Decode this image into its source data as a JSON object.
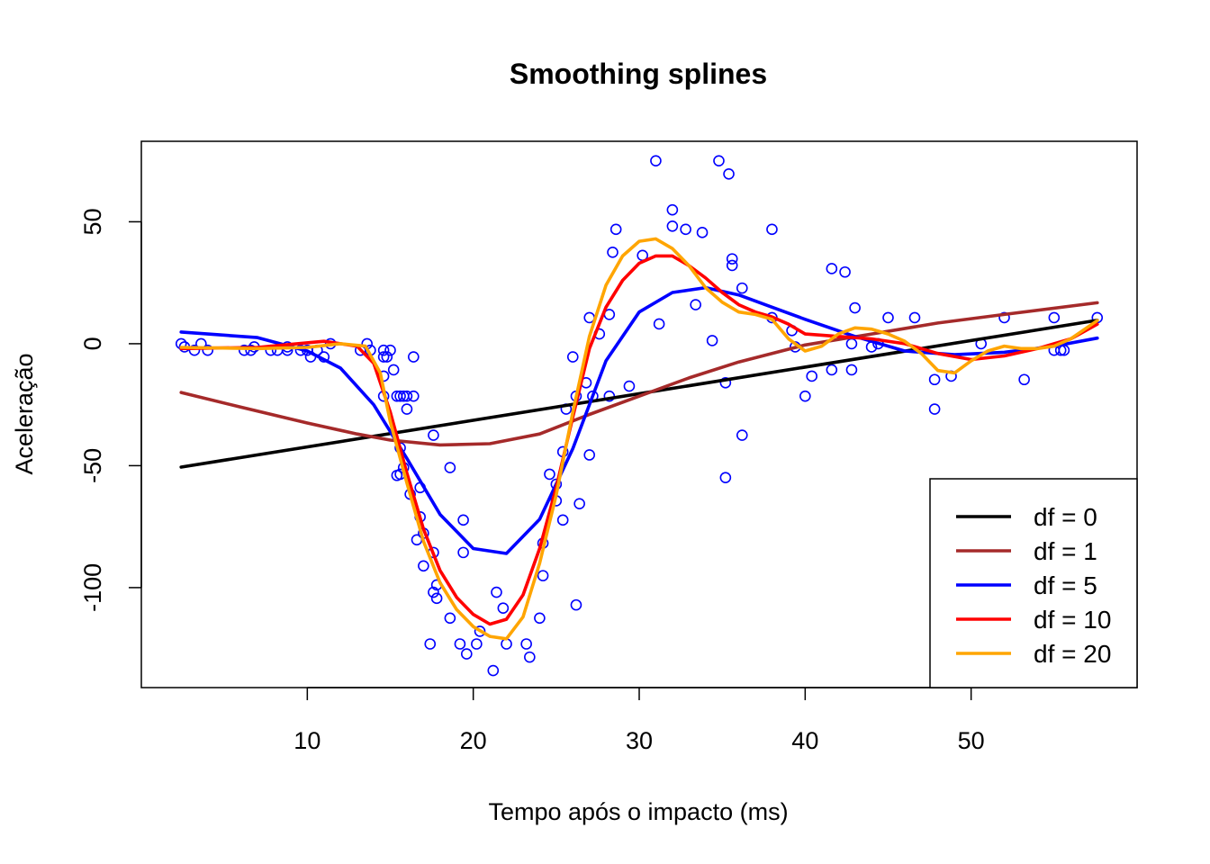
{
  "chart_data": {
    "type": "scatter",
    "title": "Smoothing splines",
    "xlabel": "Tempo após o impacto (ms)",
    "ylabel": "Aceleração",
    "xlim": [
      0.0,
      60.0
    ],
    "ylim": [
      -141.0,
      83.0
    ],
    "x_ticks": [
      10,
      20,
      30,
      40,
      50
    ],
    "y_ticks": [
      -100,
      -50,
      0,
      50
    ],
    "y_tick_labels": [
      "-100",
      "-50",
      "0",
      "50"
    ],
    "legend_position": "bottom-right",
    "points_color": "#0000ff",
    "points": [
      [
        2.4,
        0.0
      ],
      [
        2.6,
        -1.3
      ],
      [
        3.2,
        -2.7
      ],
      [
        3.6,
        0.0
      ],
      [
        4.0,
        -2.7
      ],
      [
        6.2,
        -2.7
      ],
      [
        6.6,
        -2.7
      ],
      [
        6.8,
        -1.3
      ],
      [
        7.8,
        -2.7
      ],
      [
        8.2,
        -2.7
      ],
      [
        8.8,
        -1.3
      ],
      [
        8.8,
        -2.7
      ],
      [
        9.6,
        -2.7
      ],
      [
        10.0,
        -2.7
      ],
      [
        10.2,
        -5.4
      ],
      [
        10.6,
        -2.7
      ],
      [
        11.0,
        -5.4
      ],
      [
        11.4,
        0.0
      ],
      [
        13.2,
        -2.7
      ],
      [
        13.6,
        0.0
      ],
      [
        13.8,
        -2.7
      ],
      [
        14.6,
        -2.7
      ],
      [
        14.6,
        -5.4
      ],
      [
        14.6,
        -13.3
      ],
      [
        14.6,
        -21.5
      ],
      [
        14.8,
        -5.4
      ],
      [
        15.0,
        -2.7
      ],
      [
        15.2,
        -10.7
      ],
      [
        15.4,
        -21.5
      ],
      [
        15.4,
        -54.0
      ],
      [
        15.6,
        -53.5
      ],
      [
        15.6,
        -21.5
      ],
      [
        15.6,
        -42.7
      ],
      [
        15.8,
        -21.5
      ],
      [
        15.8,
        -50.8
      ],
      [
        16.0,
        -21.5
      ],
      [
        16.0,
        -26.8
      ],
      [
        16.2,
        -61.7
      ],
      [
        16.4,
        -21.5
      ],
      [
        16.4,
        -5.4
      ],
      [
        16.6,
        -80.4
      ],
      [
        16.8,
        -59.0
      ],
      [
        16.8,
        -71.0
      ],
      [
        17.0,
        -91.1
      ],
      [
        17.0,
        -77.7
      ],
      [
        17.4,
        -123.1
      ],
      [
        17.6,
        -37.5
      ],
      [
        17.6,
        -85.6
      ],
      [
        17.6,
        -101.9
      ],
      [
        17.8,
        -104.4
      ],
      [
        17.8,
        -98.9
      ],
      [
        18.6,
        -112.5
      ],
      [
        18.6,
        -50.8
      ],
      [
        19.2,
        -123.1
      ],
      [
        19.4,
        -72.3
      ],
      [
        19.4,
        -85.6
      ],
      [
        19.6,
        -127.2
      ],
      [
        20.2,
        -123.1
      ],
      [
        20.4,
        -117.9
      ],
      [
        21.2,
        -134.0
      ],
      [
        21.4,
        -101.9
      ],
      [
        21.8,
        -108.4
      ],
      [
        22.0,
        -123.1
      ],
      [
        23.2,
        -123.1
      ],
      [
        23.4,
        -128.5
      ],
      [
        24.0,
        -112.5
      ],
      [
        24.2,
        -95.1
      ],
      [
        24.2,
        -81.8
      ],
      [
        24.6,
        -53.5
      ],
      [
        25.0,
        -64.4
      ],
      [
        25.0,
        -57.6
      ],
      [
        25.4,
        -72.3
      ],
      [
        25.4,
        -44.3
      ],
      [
        25.6,
        -26.8
      ],
      [
        26.0,
        -5.4
      ],
      [
        26.2,
        -107.1
      ],
      [
        26.2,
        -21.5
      ],
      [
        26.4,
        -65.6
      ],
      [
        26.8,
        -16.0
      ],
      [
        27.0,
        10.7
      ],
      [
        27.0,
        -45.6
      ],
      [
        27.2,
        -21.5
      ],
      [
        27.6,
        4.0
      ],
      [
        28.2,
        12.0
      ],
      [
        28.2,
        -21.5
      ],
      [
        28.4,
        37.5
      ],
      [
        28.6,
        46.9
      ],
      [
        29.4,
        -17.4
      ],
      [
        30.2,
        36.2
      ],
      [
        31.0,
        75.0
      ],
      [
        31.2,
        8.1
      ],
      [
        32.0,
        54.9
      ],
      [
        32.0,
        48.2
      ],
      [
        32.8,
        46.9
      ],
      [
        33.4,
        16.0
      ],
      [
        33.8,
        45.6
      ],
      [
        34.4,
        1.3
      ],
      [
        34.8,
        75.0
      ],
      [
        35.2,
        -16.0
      ],
      [
        35.2,
        -54.9
      ],
      [
        35.4,
        69.6
      ],
      [
        35.6,
        34.8
      ],
      [
        35.6,
        32.1
      ],
      [
        36.2,
        22.8
      ],
      [
        36.2,
        -37.5
      ],
      [
        38.0,
        10.7
      ],
      [
        38.0,
        46.9
      ],
      [
        39.2,
        5.4
      ],
      [
        39.4,
        -1.3
      ],
      [
        40.0,
        -21.5
      ],
      [
        40.4,
        -13.3
      ],
      [
        41.6,
        30.8
      ],
      [
        41.6,
        -10.7
      ],
      [
        42.4,
        29.4
      ],
      [
        42.8,
        0.0
      ],
      [
        42.8,
        -10.7
      ],
      [
        43.0,
        14.7
      ],
      [
        44.0,
        -1.3
      ],
      [
        44.4,
        0.0
      ],
      [
        45.0,
        10.7
      ],
      [
        46.6,
        10.7
      ],
      [
        47.8,
        -14.7
      ],
      [
        47.8,
        -26.8
      ],
      [
        48.8,
        -13.3
      ],
      [
        50.6,
        0.0
      ],
      [
        52.0,
        10.7
      ],
      [
        53.2,
        -14.7
      ],
      [
        55.0,
        10.7
      ],
      [
        55.0,
        -2.7
      ],
      [
        55.4,
        -2.7
      ],
      [
        55.6,
        -2.7
      ],
      [
        57.6,
        10.7
      ]
    ],
    "series": [
      {
        "name": "df = 0",
        "color": "#000000",
        "x": [
          2.4,
          57.6
        ],
        "y": [
          -50.6,
          9.6
        ]
      },
      {
        "name": "df = 1",
        "color": "#a52a2a",
        "x": [
          2.4,
          6,
          10,
          13,
          15,
          18,
          21,
          24,
          27,
          30,
          33,
          36,
          40,
          44,
          48,
          52,
          57.6
        ],
        "y": [
          -20,
          -26,
          -32.5,
          -37,
          -39.5,
          -41.5,
          -41,
          -37,
          -29,
          -21.5,
          -14,
          -7.5,
          -0.5,
          4,
          8.5,
          12,
          16.8
        ]
      },
      {
        "name": "df = 5",
        "color": "#0000ff",
        "x": [
          2.4,
          7,
          10,
          12,
          14,
          16,
          18,
          20,
          22,
          24,
          26,
          28,
          30,
          32,
          34,
          36,
          38,
          40,
          43,
          46,
          49,
          52,
          55,
          57.6
        ],
        "y": [
          4.8,
          2.5,
          -3,
          -10,
          -25,
          -47,
          -70,
          -84,
          -86,
          -72,
          -43,
          -7,
          13,
          21,
          23,
          20,
          15,
          10,
          3,
          -3,
          -4.5,
          -3.5,
          -1,
          2.3
        ]
      },
      {
        "name": "df = 10",
        "color": "#ff0000",
        "x": [
          2.4,
          7,
          11,
          13,
          14,
          15,
          16,
          17,
          18,
          19,
          20,
          21,
          22,
          23,
          24,
          25,
          26,
          27,
          28,
          29,
          30,
          31,
          32,
          33,
          34,
          35,
          36,
          37,
          38,
          39,
          40,
          42,
          44,
          46,
          48,
          50,
          52,
          54,
          56,
          57.6
        ],
        "y": [
          -2,
          -1.5,
          1,
          -1,
          -8,
          -28,
          -53,
          -76,
          -93,
          -104,
          -111,
          -115,
          -113,
          -103,
          -84,
          -59,
          -30,
          -2,
          15,
          26,
          33,
          36,
          36,
          32,
          27,
          21,
          16,
          13,
          11,
          8,
          4,
          3,
          2,
          0,
          -4,
          -6.5,
          -5,
          -2,
          2,
          8
        ]
      },
      {
        "name": "df = 20",
        "color": "#ffa500",
        "x": [
          2.4,
          7,
          10,
          12,
          13.5,
          14.4,
          15,
          16,
          17,
          18,
          19,
          20,
          21,
          22,
          23,
          24,
          25,
          26,
          27,
          28,
          29,
          30,
          31,
          32,
          33,
          34,
          35,
          36,
          37,
          38,
          39,
          40,
          41,
          42,
          43,
          44,
          45,
          46,
          47,
          48,
          49,
          50,
          51,
          52,
          53,
          54,
          55,
          56,
          57.6
        ],
        "y": [
          -1.5,
          -2,
          -1.5,
          0,
          -1,
          -12,
          -32,
          -57,
          -81,
          -98,
          -109,
          -116,
          -120,
          -121,
          -112,
          -90,
          -62,
          -28,
          3,
          24,
          36,
          42,
          43,
          39,
          32,
          23,
          17,
          13,
          12,
          10,
          2,
          -3,
          -1,
          4,
          6.5,
          6,
          4,
          1,
          -4,
          -11,
          -12,
          -7,
          -3,
          -1,
          -2,
          -2,
          -1,
          2,
          9.5
        ]
      }
    ]
  }
}
